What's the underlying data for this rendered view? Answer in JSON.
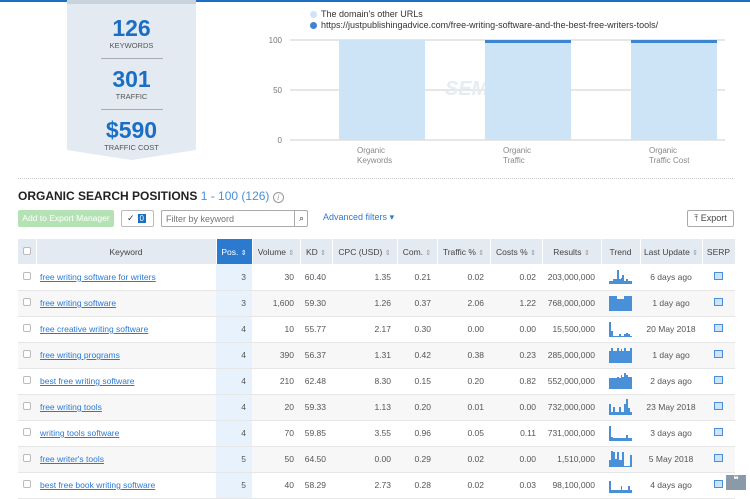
{
  "summary": {
    "keywords": {
      "value": "126",
      "label": "KEYWORDS"
    },
    "traffic": {
      "value": "301",
      "label": "TRAFFIC"
    },
    "cost": {
      "value": "$590",
      "label": "TRAFFIC COST"
    }
  },
  "chart_data": {
    "type": "bar",
    "stacked": true,
    "categories": [
      "Organic Keywords",
      "Organic Traffic",
      "Organic Traffic Cost"
    ],
    "series": [
      {
        "name": "The domain's other URLs",
        "color": "#cde4f7",
        "values": [
          100,
          97,
          97
        ]
      },
      {
        "name": "https://justpublishingadvice.com/free-writing-software-and-the-best-free-writers-tools/",
        "color": "#3d85d0",
        "values": [
          0,
          3,
          3
        ]
      }
    ],
    "yticks": [
      0,
      50,
      100
    ],
    "ylim": [
      0,
      100
    ],
    "grid": true,
    "legend": "top-left",
    "watermark": "SEMRUSH"
  },
  "section": {
    "title": "ORGANIC SEARCH POSITIONS",
    "range": "1 - 100 (126)",
    "info": "i"
  },
  "toolbar": {
    "add_export": "Add to Export Manager",
    "check": "✓",
    "selected_count": "0",
    "filter_placeholder": "Filter by keyword",
    "search_icon": "⌕",
    "advanced": "Advanced filters",
    "advanced_chevron": "▾",
    "export": "Export",
    "export_icon": "⤒"
  },
  "table": {
    "columns": [
      "Keyword",
      "Pos.",
      "Volume",
      "KD",
      "CPC (USD)",
      "Com.",
      "Traffic %",
      "Costs %",
      "Results",
      "Trend",
      "Last Update",
      "SERP"
    ],
    "sort_glyph": "⇕",
    "rows": [
      {
        "keyword": "free writing software for writers",
        "pos": "3",
        "volume": "30",
        "kd": "60.40",
        "cpc": "1.35",
        "com": "0.21",
        "traffic": "0.02",
        "costs": "0.02",
        "results": "203,000,000",
        "trend": [
          2,
          2,
          3,
          3,
          10,
          3,
          4,
          6,
          2,
          3,
          2,
          2
        ],
        "updated": "6 days ago"
      },
      {
        "keyword": "free writing software",
        "pos": "3",
        "volume": "1,600",
        "kd": "59.30",
        "cpc": "1.26",
        "com": "0.37",
        "traffic": "2.06",
        "costs": "1.22",
        "results": "768,000,000",
        "trend": [
          10,
          10,
          10,
          10,
          8,
          8,
          8,
          8,
          10,
          10,
          10,
          10
        ],
        "updated": "1 day ago"
      },
      {
        "keyword": "free creative writing software",
        "pos": "4",
        "volume": "10",
        "kd": "55.77",
        "cpc": "2.17",
        "com": "0.30",
        "traffic": "0.00",
        "costs": "0.00",
        "results": "15,500,000",
        "trend": [
          10,
          3,
          0,
          0,
          0,
          1,
          0,
          0,
          1,
          2,
          1,
          0
        ],
        "updated": "20 May 2018"
      },
      {
        "keyword": "free writing programs",
        "pos": "4",
        "volume": "390",
        "kd": "56.37",
        "cpc": "1.31",
        "com": "0.42",
        "traffic": "0.38",
        "costs": "0.23",
        "results": "285,000,000",
        "trend": [
          8,
          10,
          8,
          8,
          10,
          8,
          9,
          8,
          10,
          8,
          8,
          10
        ],
        "updated": "1 day ago"
      },
      {
        "keyword": "best free writing software",
        "pos": "4",
        "volume": "210",
        "kd": "62.48",
        "cpc": "8.30",
        "com": "0.15",
        "traffic": "0.20",
        "costs": "0.82",
        "results": "552,000,000",
        "trend": [
          7,
          7,
          7,
          7,
          8,
          7,
          9,
          8,
          11,
          9,
          8,
          8
        ],
        "updated": "2 days ago"
      },
      {
        "keyword": "free writing tools",
        "pos": "4",
        "volume": "20",
        "kd": "59.33",
        "cpc": "1.13",
        "com": "0.20",
        "traffic": "0.01",
        "costs": "0.00",
        "results": "732,000,000",
        "trend": [
          7,
          1,
          5,
          1,
          1,
          5,
          1,
          1,
          7,
          11,
          4,
          1
        ],
        "updated": "23 May 2018"
      },
      {
        "keyword": "writing tools software",
        "pos": "4",
        "volume": "70",
        "kd": "59.85",
        "cpc": "3.55",
        "com": "0.96",
        "traffic": "0.05",
        "costs": "0.11",
        "results": "731,000,000",
        "trend": [
          10,
          2,
          1,
          1,
          1,
          1,
          1,
          1,
          1,
          3,
          1,
          1
        ],
        "updated": "3 days ago"
      },
      {
        "keyword": "free writer's tools",
        "pos": "5",
        "volume": "50",
        "kd": "64.50",
        "cpc": "0.00",
        "com": "0.29",
        "traffic": "0.02",
        "costs": "0.00",
        "results": "1,510,000",
        "trend": [
          4,
          11,
          10,
          5,
          10,
          4,
          4,
          10,
          0,
          0,
          0,
          8
        ],
        "updated": "5 May 2018"
      },
      {
        "keyword": "best free book writing software",
        "pos": "5",
        "volume": "40",
        "kd": "58.29",
        "cpc": "2.73",
        "com": "0.28",
        "traffic": "0.02",
        "costs": "0.03",
        "results": "98,100,000",
        "trend": [
          8,
          1,
          1,
          1,
          1,
          1,
          4,
          1,
          1,
          1,
          4,
          1
        ],
        "updated": "4 days ago"
      }
    ]
  },
  "feedback_icon": "❝"
}
